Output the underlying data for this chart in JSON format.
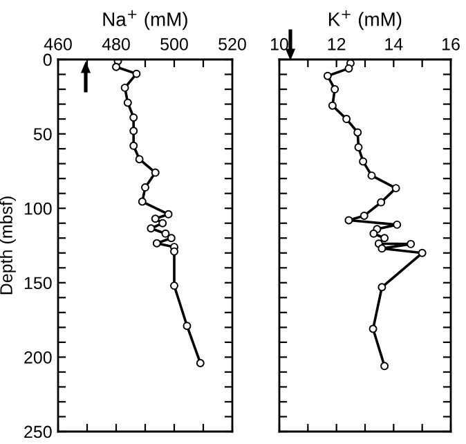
{
  "chart_data": [
    {
      "type": "line",
      "xlabel": "Na$^{+}$ (mM)",
      "ylabel": "Depth (mbsf)",
      "marker": "circle",
      "line_style": "solid",
      "grid": false,
      "legend": false,
      "series": [
        {
          "color": "#000000",
          "x": [
            480.6,
            480,
            487,
            483,
            484,
            486,
            486,
            486,
            488,
            493.5,
            490,
            489,
            498,
            493.5,
            496,
            492,
            497,
            499,
            494,
            500,
            500,
            500,
            504.4,
            509
          ],
          "values": [
            1,
            5,
            9.6,
            19,
            29,
            39,
            48,
            58,
            67,
            76,
            86,
            95.5,
            104,
            107,
            110,
            113.5,
            117,
            120,
            123.5,
            126,
            129,
            152,
            179,
            204
          ]
        }
      ],
      "xlim": [
        460,
        520
      ],
      "xticks": [
        460,
        {
          "value": 470,
          "label": null
        },
        480,
        {
          "value": 490,
          "label": null
        },
        500,
        {
          "value": 510,
          "label": null
        },
        520
      ],
      "ylim": [
        250,
        0
      ],
      "yticks": [
        0,
        {
          "value": 10,
          "label": null
        },
        {
          "value": 20,
          "label": null
        },
        {
          "value": 30,
          "label": null
        },
        {
          "value": 40,
          "label": null
        },
        50,
        {
          "value": 60,
          "label": null
        },
        {
          "value": 70,
          "label": null
        },
        {
          "value": 80,
          "label": null
        },
        {
          "value": 90,
          "label": null
        },
        100,
        {
          "value": 110,
          "label": null
        },
        {
          "value": 120,
          "label": null
        },
        {
          "value": 130,
          "label": null
        },
        {
          "value": 140,
          "label": null
        },
        150,
        {
          "value": 160,
          "label": null
        },
        {
          "value": 170,
          "label": null
        },
        {
          "value": 180,
          "label": null
        },
        {
          "value": 190,
          "label": null
        },
        200,
        {
          "value": 210,
          "label": null
        },
        {
          "value": 220,
          "label": null
        },
        {
          "value": 230,
          "label": null
        },
        {
          "value": 240,
          "label": null
        },
        250
      ]
    },
    {
      "type": "line",
      "xlabel": "K$^{+}$ (mM)",
      "marker": "circle",
      "line_style": "solid",
      "grid": false,
      "legend": false,
      "tick_labels": "x",
      "series": [
        {
          "color": "#000000",
          "x": [
            12.49,
            12.43,
            11.69,
            11.94,
            11.86,
            12.35,
            12.74,
            12.77,
            12.93,
            13.23,
            14.08,
            13.56,
            12.97,
            12.43,
            14.12,
            13.42,
            13.3,
            13.68,
            13.48,
            14.6,
            13.59,
            15.0,
            13.59,
            13.28,
            13.68
          ],
          "values": [
            2.5,
            6,
            11,
            20,
            31,
            40,
            49,
            59,
            68.5,
            78,
            86.5,
            96,
            105,
            108,
            111,
            114,
            117,
            120,
            123.7,
            124,
            127,
            130,
            153,
            181,
            206
          ]
        }
      ],
      "xlim": [
        10,
        16
      ],
      "xticks": [
        10,
        {
          "value": 11,
          "label": null
        },
        12,
        {
          "value": 13,
          "label": null
        },
        14,
        {
          "value": 15,
          "label": null
        },
        16
      ],
      "ylim": [
        250,
        0
      ],
      "yticks": [
        0,
        {
          "value": 10,
          "label": null
        },
        {
          "value": 20,
          "label": null
        },
        {
          "value": 30,
          "label": null
        },
        {
          "value": 40,
          "label": null
        },
        50,
        {
          "value": 60,
          "label": null
        },
        {
          "value": 70,
          "label": null
        },
        {
          "value": 80,
          "label": null
        },
        {
          "value": 90,
          "label": null
        },
        100,
        {
          "value": 110,
          "label": null
        },
        {
          "value": 120,
          "label": null
        },
        {
          "value": 130,
          "label": null
        },
        {
          "value": 140,
          "label": null
        },
        150,
        {
          "value": 160,
          "label": null
        },
        {
          "value": 170,
          "label": null
        },
        {
          "value": 180,
          "label": null
        },
        {
          "value": 190,
          "label": null
        },
        200,
        {
          "value": 210,
          "label": null
        },
        {
          "value": 220,
          "label": null
        },
        {
          "value": 230,
          "label": null
        },
        {
          "value": 240,
          "label": null
        },
        250
      ]
    }
  ]
}
